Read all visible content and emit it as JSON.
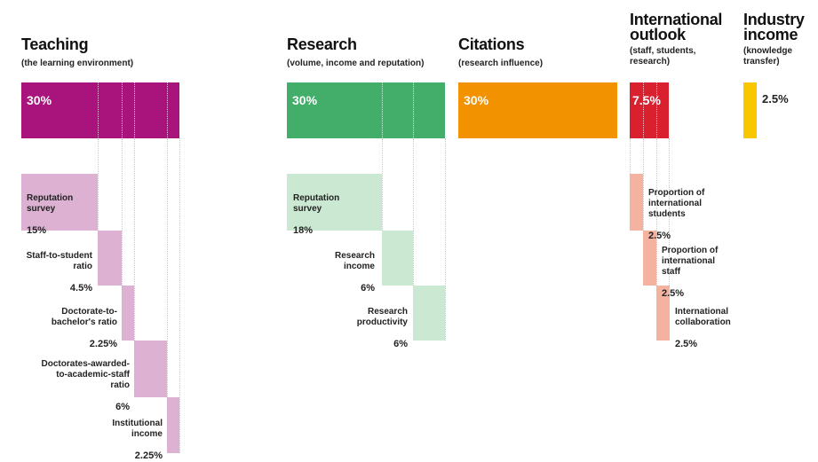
{
  "colors": {
    "teaching": "#a8147c",
    "teaching_light": "#dcb1d2",
    "research": "#42ae6a",
    "research_light": "#cbe8d3",
    "citations": "#f39200",
    "international": "#d9202f",
    "international_light": "#f4b2a1",
    "industry": "#f8c700"
  },
  "teaching": {
    "title": "Teaching",
    "subtitle": "(the learning environment)",
    "weight": "30%",
    "components": [
      {
        "label": "Reputation\nsurvey",
        "value": "15%"
      },
      {
        "label": "Staff-to-student\nratio",
        "value": "4.5%"
      },
      {
        "label": "Doctorate-to-\nbachelor's ratio",
        "value": "2.25%"
      },
      {
        "label": "Doctorates-awarded-\nto-academic-staff\nratio",
        "value": "6%"
      },
      {
        "label": "Institutional\nincome",
        "value": "2.25%"
      }
    ]
  },
  "research": {
    "title": "Research",
    "subtitle": "(volume, income and reputation)",
    "weight": "30%",
    "components": [
      {
        "label": "Reputation\nsurvey",
        "value": "18%"
      },
      {
        "label": "Research\nincome",
        "value": "6%"
      },
      {
        "label": "Research\nproductivity",
        "value": "6%"
      }
    ]
  },
  "citations": {
    "title": "Citations",
    "subtitle": "(research influence)",
    "weight": "30%"
  },
  "international": {
    "title": "International\noutlook",
    "subtitle": "(staff, students,\nresearch)",
    "weight": "7.5%",
    "components": [
      {
        "label": "Proportion of\ninternational\nstudents",
        "value": "2.5%"
      },
      {
        "label": "Proportion of\ninternational\nstaff",
        "value": "2.5%"
      },
      {
        "label": "International\ncollaboration",
        "value": "2.5%"
      }
    ]
  },
  "industry": {
    "title": "Industry\nincome",
    "subtitle": "(knowledge\ntransfer)",
    "weight": "2.5%"
  }
}
